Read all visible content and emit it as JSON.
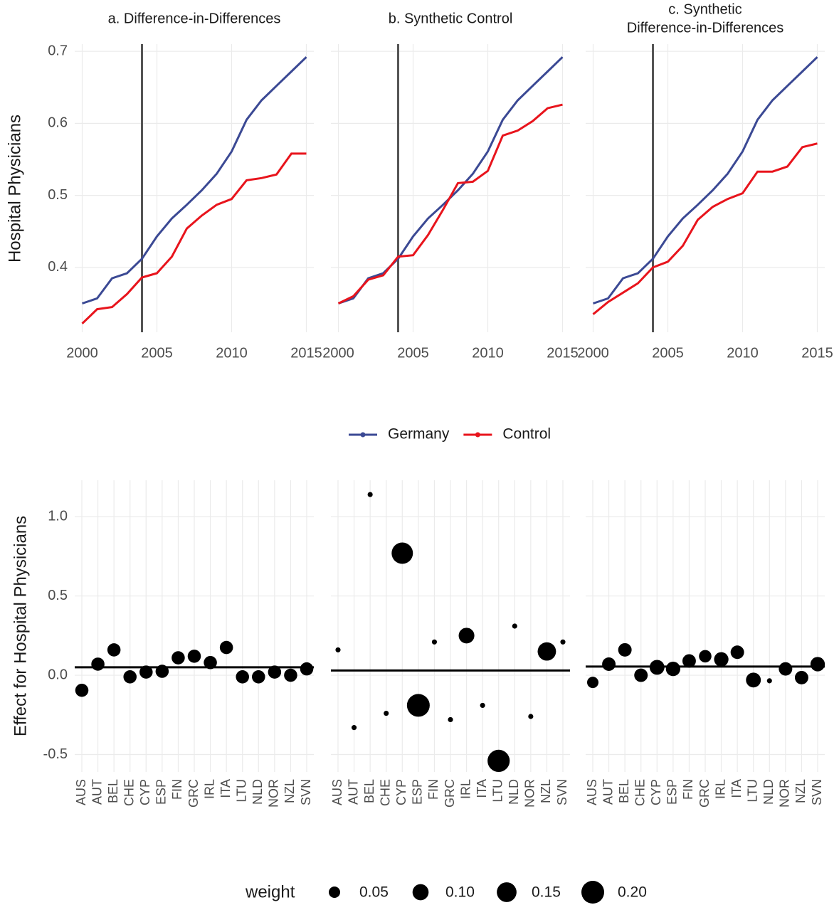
{
  "chart_data": [
    {
      "type": "line",
      "title": [
        "a. Difference-in-Differences"
      ],
      "ylabel": "Hospital Physicians",
      "x": [
        2000,
        2001,
        2002,
        2003,
        2004,
        2005,
        2006,
        2007,
        2008,
        2009,
        2010,
        2011,
        2012,
        2013,
        2014,
        2015
      ],
      "series": [
        {
          "name": "Germany",
          "color": "#3b4994",
          "values": [
            0.35,
            0.357,
            0.385,
            0.392,
            0.412,
            0.443,
            0.468,
            0.487,
            0.507,
            0.53,
            0.561,
            0.605,
            0.632,
            0.652,
            0.672,
            0.692
          ]
        },
        {
          "name": "Control",
          "color": "#e8141c",
          "values": [
            0.322,
            0.342,
            0.345,
            0.363,
            0.386,
            0.392,
            0.415,
            0.454,
            0.472,
            0.487,
            0.495,
            0.521,
            0.524,
            0.529,
            0.558,
            0.558
          ]
        }
      ],
      "treatment_x": 2004,
      "xlim": [
        1999.5,
        2015.5
      ],
      "xticks": [
        2000,
        2005,
        2010,
        2015
      ],
      "ylim": [
        0.31,
        0.71
      ],
      "yticks": [
        0.4,
        0.5,
        0.6,
        0.7
      ],
      "ytick_labels": true,
      "grid": true,
      "legend": "bottom"
    },
    {
      "type": "line",
      "title": [
        "b. Synthetic Control"
      ],
      "x": [
        2000,
        2001,
        2002,
        2003,
        2004,
        2005,
        2006,
        2007,
        2008,
        2009,
        2010,
        2011,
        2012,
        2013,
        2014,
        2015
      ],
      "series": [
        {
          "name": "Germany",
          "color": "#3b4994",
          "values": [
            0.35,
            0.357,
            0.385,
            0.392,
            0.412,
            0.443,
            0.468,
            0.487,
            0.507,
            0.53,
            0.561,
            0.605,
            0.632,
            0.652,
            0.672,
            0.692
          ]
        },
        {
          "name": "Control",
          "color": "#e8141c",
          "values": [
            0.35,
            0.36,
            0.383,
            0.389,
            0.415,
            0.417,
            0.445,
            0.48,
            0.517,
            0.519,
            0.534,
            0.583,
            0.59,
            0.603,
            0.621,
            0.626
          ]
        }
      ],
      "treatment_x": 2004,
      "xlim": [
        1999.5,
        2015.5
      ],
      "xticks": [
        2000,
        2005,
        2010,
        2015
      ],
      "ylim": [
        0.31,
        0.71
      ],
      "yticks": [
        0.4,
        0.5,
        0.6,
        0.7
      ],
      "ytick_labels": false,
      "grid": true
    },
    {
      "type": "line",
      "title": [
        "c. Synthetic",
        "Difference-in-Differences"
      ],
      "x": [
        2000,
        2001,
        2002,
        2003,
        2004,
        2005,
        2006,
        2007,
        2008,
        2009,
        2010,
        2011,
        2012,
        2013,
        2014,
        2015
      ],
      "series": [
        {
          "name": "Germany",
          "color": "#3b4994",
          "values": [
            0.35,
            0.357,
            0.385,
            0.392,
            0.412,
            0.443,
            0.468,
            0.487,
            0.507,
            0.53,
            0.561,
            0.605,
            0.632,
            0.652,
            0.672,
            0.692
          ]
        },
        {
          "name": "Control",
          "color": "#e8141c",
          "values": [
            0.335,
            0.352,
            0.365,
            0.378,
            0.4,
            0.408,
            0.43,
            0.466,
            0.484,
            0.495,
            0.503,
            0.533,
            0.533,
            0.54,
            0.567,
            0.572
          ]
        }
      ],
      "treatment_x": 2004,
      "xlim": [
        1999.5,
        2015.5
      ],
      "xticks": [
        2000,
        2005,
        2010,
        2015
      ],
      "ylim": [
        0.31,
        0.71
      ],
      "yticks": [
        0.4,
        0.5,
        0.6,
        0.7
      ],
      "ytick_labels": false,
      "grid": true
    },
    {
      "type": "dot",
      "ylabel": "Effect for Hospital Physicians",
      "categories": [
        "AUS",
        "AUT",
        "BEL",
        "CHE",
        "CYP",
        "ESP",
        "FIN",
        "GRC",
        "IRL",
        "ITA",
        "LTU",
        "NLD",
        "NOR",
        "NZL",
        "SVN"
      ],
      "values": [
        -0.095,
        0.07,
        0.16,
        -0.01,
        0.02,
        0.025,
        0.11,
        0.12,
        0.08,
        0.175,
        -0.01,
        -0.01,
        0.02,
        0.0,
        0.04
      ],
      "weights": [
        0.067,
        0.067,
        0.067,
        0.067,
        0.067,
        0.067,
        0.067,
        0.067,
        0.067,
        0.067,
        0.067,
        0.067,
        0.067,
        0.067,
        0.067
      ],
      "estimate": 0.05,
      "color": "#000000",
      "ylim": [
        -0.61,
        1.23
      ],
      "yticks": [
        -0.5,
        {
          "value": 0,
          "label": "0.0"
        },
        0.5,
        {
          "value": 1,
          "label": "1.0"
        }
      ],
      "ytick_labels": true,
      "grid": true,
      "size_legend": {
        "title": "weight",
        "values": [
          0.05,
          0.1,
          0.15,
          0.2
        ],
        "labels": [
          "0.05",
          "0.10",
          "0.15",
          "0.20"
        ]
      }
    },
    {
      "type": "dot",
      "categories": [
        "AUS",
        "AUT",
        "BEL",
        "CHE",
        "CYP",
        "ESP",
        "FIN",
        "GRC",
        "IRL",
        "ITA",
        "LTU",
        "NLD",
        "NOR",
        "NZL",
        "SVN"
      ],
      "values": [
        0.16,
        -0.33,
        1.14,
        -0.24,
        0.77,
        -0.19,
        0.21,
        -0.28,
        0.25,
        -0.19,
        -0.54,
        0.31,
        -0.26,
        0.15,
        0.21
      ],
      "weights": [
        0.01,
        0.01,
        0.01,
        0.01,
        0.175,
        0.2,
        0.01,
        0.01,
        0.095,
        0.01,
        0.19,
        0.01,
        0.01,
        0.13,
        0.01
      ],
      "estimate": 0.03,
      "color": "#000000",
      "ylim": [
        -0.61,
        1.23
      ],
      "yticks": [
        -0.5,
        {
          "value": 0,
          "label": "0.0"
        },
        0.5,
        {
          "value": 1,
          "label": "1.0"
        }
      ],
      "ytick_labels": false,
      "grid": true
    },
    {
      "type": "dot",
      "categories": [
        "AUS",
        "AUT",
        "BEL",
        "CHE",
        "CYP",
        "ESP",
        "FIN",
        "GRC",
        "IRL",
        "ITA",
        "LTU",
        "NLD",
        "NOR",
        "NZL",
        "SVN"
      ],
      "values": [
        -0.045,
        0.07,
        0.16,
        0.0,
        0.05,
        0.04,
        0.09,
        0.12,
        0.1,
        0.145,
        -0.03,
        -0.035,
        0.04,
        -0.015,
        0.07
      ],
      "weights": [
        0.05,
        0.07,
        0.07,
        0.07,
        0.085,
        0.08,
        0.07,
        0.06,
        0.08,
        0.07,
        0.085,
        0.01,
        0.07,
        0.07,
        0.08
      ],
      "estimate": 0.055,
      "color": "#000000",
      "ylim": [
        -0.61,
        1.23
      ],
      "yticks": [
        -0.5,
        {
          "value": 0,
          "label": "0.0"
        },
        0.5,
        {
          "value": 1,
          "label": "1.0"
        }
      ],
      "ytick_labels": false,
      "grid": true
    }
  ]
}
